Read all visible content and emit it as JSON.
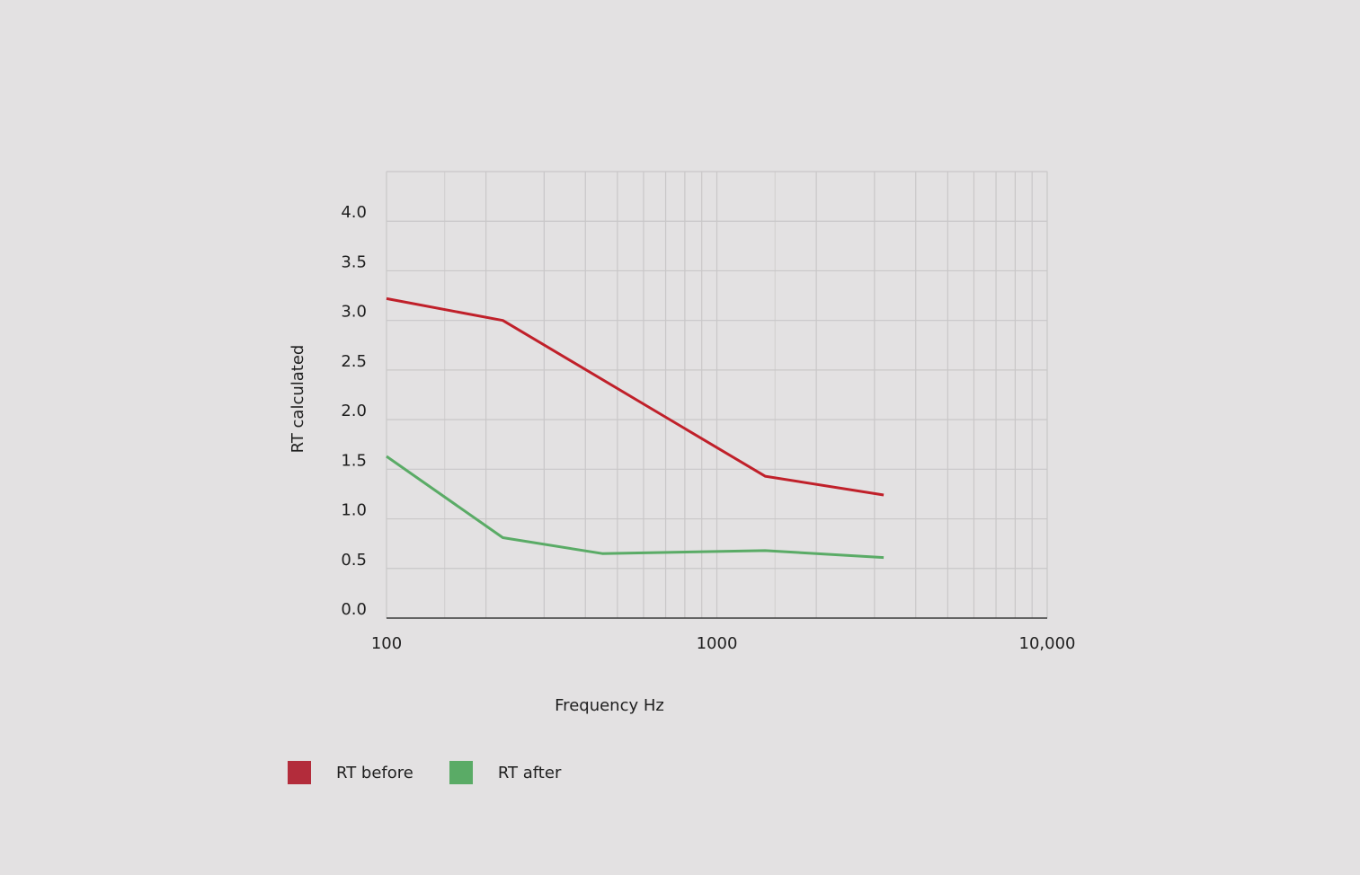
{
  "chart_data": {
    "type": "line",
    "xlabel": "Frequency Hz",
    "ylabel": "RT calculated",
    "xscale": "log",
    "xlim": [
      100,
      10000
    ],
    "ylim": [
      0,
      4.5
    ],
    "xticks": [
      100,
      1000,
      10000
    ],
    "xtick_labels": [
      "100",
      "1000",
      "10,000"
    ],
    "yticks": [
      0,
      0.5,
      1,
      1.5,
      2,
      2.5,
      3,
      3.5,
      4
    ],
    "ytick_labels": [
      "0.0",
      "0.5",
      "1.0",
      "1.5",
      "2.0",
      "2.5",
      "3.0",
      "3.5",
      "4.0"
    ],
    "grid": true,
    "legend_position": "bottom-left",
    "series": [
      {
        "name": "RT before",
        "color": "#c0202a",
        "x": [
          100,
          225,
          1400,
          3200
        ],
        "y": [
          3.22,
          3.0,
          1.43,
          1.24
        ]
      },
      {
        "name": "RT after",
        "color": "#5aab66",
        "x": [
          100,
          225,
          450,
          1400,
          3200
        ],
        "y": [
          1.63,
          0.81,
          0.65,
          0.68,
          0.61
        ]
      }
    ]
  },
  "legend": {
    "items": [
      {
        "label": "RT before",
        "color": "#b32c3b"
      },
      {
        "label": "RT after",
        "color": "#5aab66"
      }
    ]
  }
}
